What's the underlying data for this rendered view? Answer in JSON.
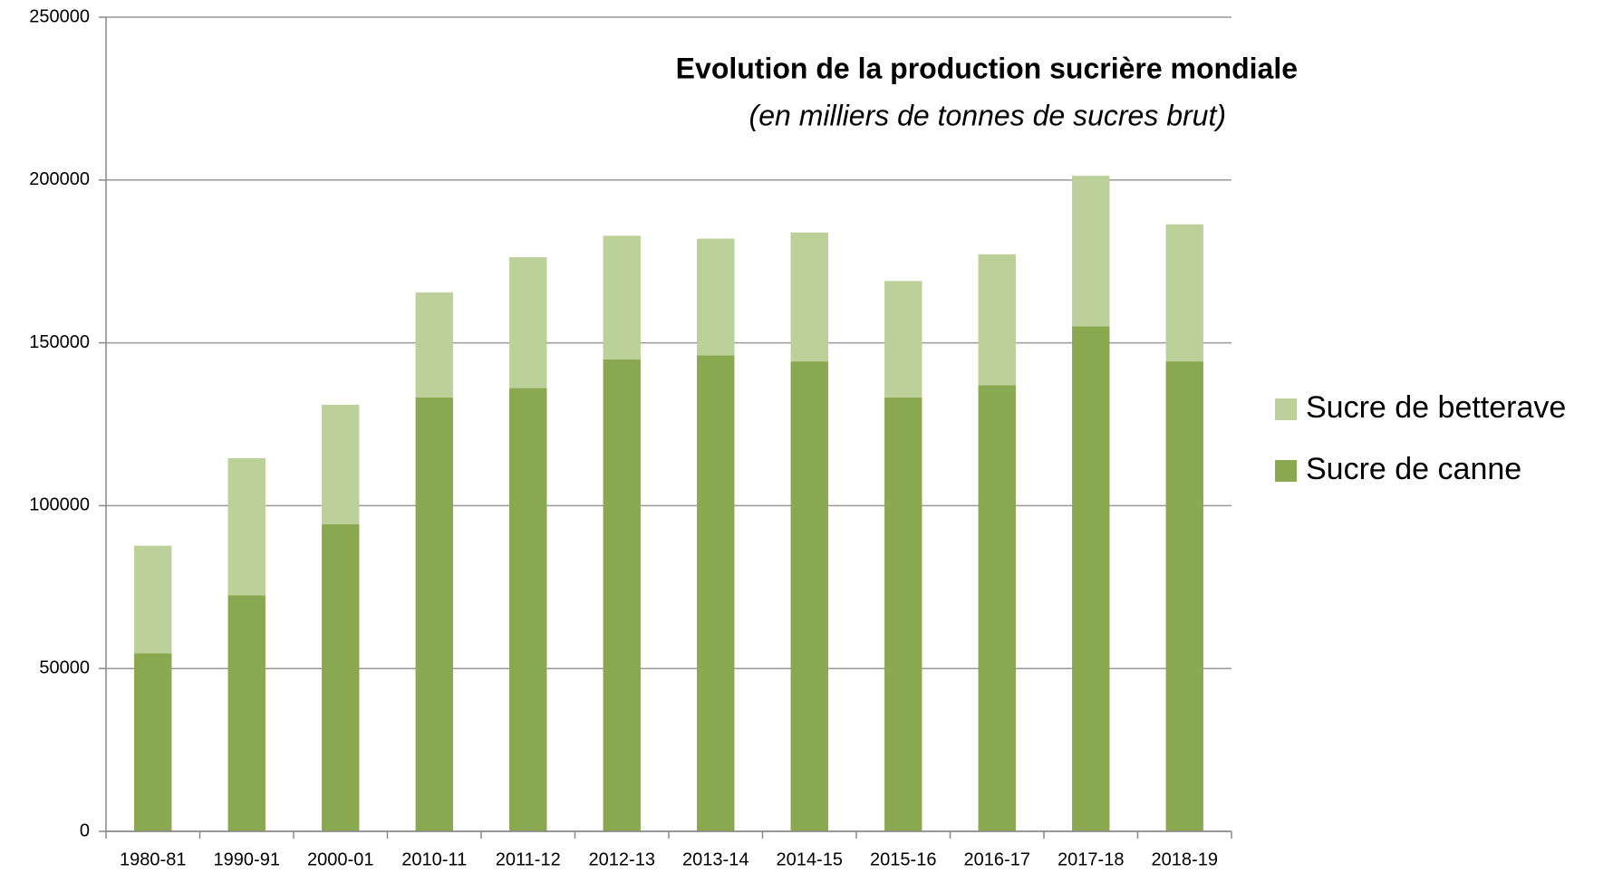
{
  "chart_data": {
    "type": "stacked_bar",
    "title": "Evolution  de la production  sucrière  mondiale",
    "subtitle": "(en milliers de tonnes de sucres brut)",
    "categories": [
      "1980-81",
      "1990-91",
      "2000-01",
      "2010-11",
      "2011-12",
      "2012-13",
      "2013-14",
      "2014-15",
      "2015-16",
      "2016-17",
      "2017-18",
      "2018-19"
    ],
    "series": [
      {
        "name": "Sucre de canne",
        "color": "#8aa84f",
        "values": [
          54700,
          72500,
          94300,
          133200,
          136100,
          144900,
          146200,
          144300,
          133200,
          137000,
          155100,
          144300
        ]
      },
      {
        "name": "Sucre de betterave",
        "color": "#bcd09a",
        "values": [
          33000,
          42100,
          36700,
          32300,
          40200,
          38000,
          35800,
          39600,
          35800,
          40200,
          46200,
          42100
        ]
      }
    ],
    "ylim": [
      0,
      250000
    ],
    "yticks": [
      0,
      50000,
      100000,
      150000,
      200000,
      250000
    ],
    "grid": true,
    "legend": "right"
  }
}
